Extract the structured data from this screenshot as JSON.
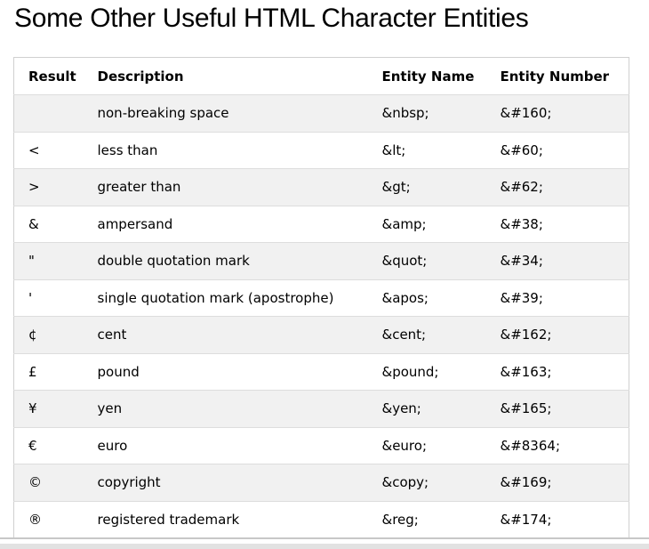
{
  "page": {
    "title": "Some Other Useful HTML Character Entities"
  },
  "table": {
    "headers": {
      "result": "Result",
      "description": "Description",
      "entity_name": "Entity Name",
      "entity_number": "Entity Number"
    },
    "rows": [
      {
        "result": "",
        "description": "non-breaking space",
        "entity_name": "&nbsp;",
        "entity_number": "&#160;"
      },
      {
        "result": "<",
        "description": "less than",
        "entity_name": "&lt;",
        "entity_number": "&#60;"
      },
      {
        "result": ">",
        "description": "greater than",
        "entity_name": "&gt;",
        "entity_number": "&#62;"
      },
      {
        "result": "&",
        "description": "ampersand",
        "entity_name": "&amp;",
        "entity_number": "&#38;"
      },
      {
        "result": "\"",
        "description": "double quotation mark",
        "entity_name": "&quot;",
        "entity_number": "&#34;"
      },
      {
        "result": "'",
        "description": "single quotation mark (apostrophe)",
        "entity_name": "&apos;",
        "entity_number": "&#39;"
      },
      {
        "result": "¢",
        "description": "cent",
        "entity_name": "&cent;",
        "entity_number": "&#162;"
      },
      {
        "result": "£",
        "description": "pound",
        "entity_name": "&pound;",
        "entity_number": "&#163;"
      },
      {
        "result": "¥",
        "description": "yen",
        "entity_name": "&yen;",
        "entity_number": "&#165;"
      },
      {
        "result": "€",
        "description": "euro",
        "entity_name": "&euro;",
        "entity_number": "&#8364;"
      },
      {
        "result": "©",
        "description": "copyright",
        "entity_name": "&copy;",
        "entity_number": "&#169;"
      },
      {
        "result": "®",
        "description": "registered trademark",
        "entity_name": "&reg;",
        "entity_number": "&#174;"
      }
    ]
  },
  "colors": {
    "stripe_row_bg": "#f1f1f1",
    "table_border": "#d0d0d0",
    "row_border": "#dddddd",
    "bottom_line": "#c8c8c8",
    "scrollbar_thumb": "#e2e2e2",
    "text": "#000000"
  }
}
